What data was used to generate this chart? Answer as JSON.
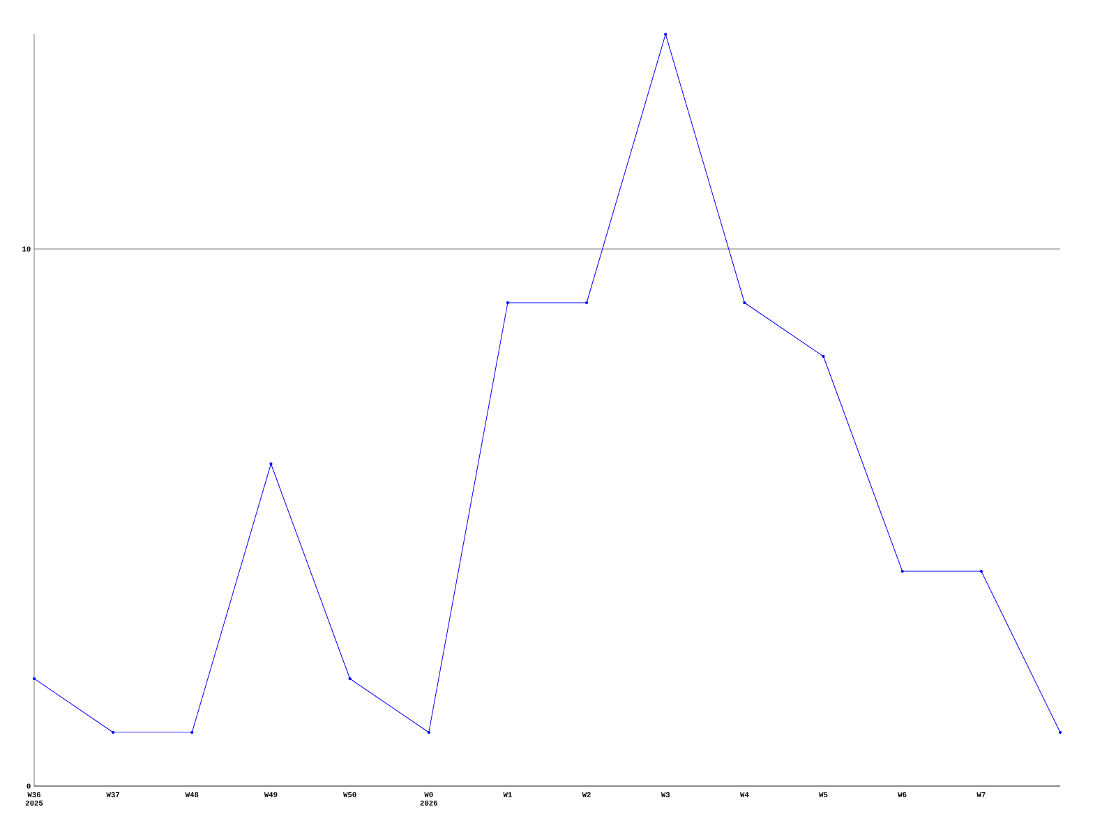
{
  "chart_data": {
    "type": "line",
    "categories": [
      "W36 2025",
      "W37",
      "W48",
      "W49",
      "W50",
      "W0 2026",
      "W1",
      "W2",
      "W3",
      "W4",
      "W5",
      "W6",
      "W7",
      null
    ],
    "values": [
      2,
      1,
      1,
      6,
      2,
      1,
      9,
      9,
      14,
      9,
      8,
      4,
      4,
      1
    ],
    "color": "#0000ff",
    "marker": "circle",
    "line_style": "solid",
    "ylim": [
      0,
      14
    ],
    "yticks": [
      0,
      10
    ],
    "grid": "y"
  }
}
